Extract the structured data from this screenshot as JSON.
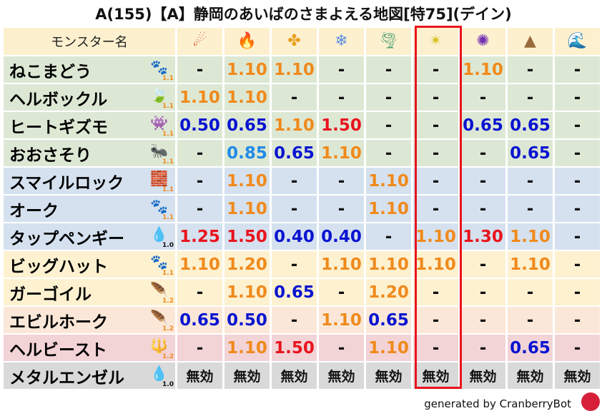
{
  "title": "A(155)【A】静岡のあいばのさまよえる地図[特75](デイン)",
  "header": {
    "name_label": "モンスター名",
    "elements": [
      {
        "icon": "fire-ball-icon",
        "glyph": "☄",
        "color": "#d2401c"
      },
      {
        "icon": "flame-icon",
        "glyph": "🔥",
        "color": "#e8501c"
      },
      {
        "icon": "explosion-icon",
        "glyph": "✤",
        "color": "#e8a020"
      },
      {
        "icon": "ice-icon",
        "glyph": "❄",
        "color": "#5b8fe0"
      },
      {
        "icon": "wind-icon",
        "glyph": "🌪",
        "color": "#4aa070"
      },
      {
        "icon": "light-icon",
        "glyph": "✴",
        "color": "#d8c020"
      },
      {
        "icon": "dark-icon",
        "glyph": "✺",
        "color": "#7030b0"
      },
      {
        "icon": "earth-icon",
        "glyph": "▲",
        "color": "#9a6a3a"
      },
      {
        "icon": "water-icon",
        "glyph": "🌊",
        "color": "#2080d0"
      }
    ]
  },
  "highlight_column": 6,
  "colors": {
    "orange": "#f08a1c",
    "red": "#e8141e",
    "blue": "#0a14d0",
    "lightblue": "#1f8ae8",
    "green_row": "#dde8d4",
    "blue_row": "#d5e1ef",
    "yellow_row": "#fdf1d0",
    "peach_row": "#fbe7d8",
    "pink_row": "#f2d3d6",
    "gray_row": "#d9d9d9"
  },
  "rows": [
    {
      "name": "ねこまどう",
      "icon": "paw-icon",
      "glyph": "🐾",
      "level": "1.1",
      "row": "green_row",
      "values": [
        "-",
        "1.10",
        "1.10",
        "-",
        "-",
        "-",
        "1.10",
        "-",
        "-"
      ]
    },
    {
      "name": "ヘルボックル",
      "icon": "leaf-icon",
      "glyph": "🍃",
      "level": "1.1",
      "row": "green_row",
      "values": [
        "1.10",
        "1.10",
        "-",
        "-",
        "-",
        "-",
        "-",
        "-",
        "-"
      ]
    },
    {
      "name": "ヒートギズモ",
      "icon": "gas-monster-icon",
      "glyph": "👾",
      "level": "1.1",
      "row": "green_row",
      "values": [
        "0.50",
        "0.65",
        "1.10",
        "1.50",
        "-",
        "-",
        "0.65",
        "0.65",
        "-"
      ]
    },
    {
      "name": "おおさそり",
      "icon": "bug-icon",
      "glyph": "🐜",
      "level": "1.1",
      "row": "green_row",
      "values": [
        "-",
        "0.85",
        "0.65",
        "1.10",
        "-",
        "-",
        "-",
        "0.65",
        "-"
      ]
    },
    {
      "name": "スマイルロック",
      "icon": "brick-icon",
      "glyph": "🧱",
      "level": "1.1",
      "row": "blue_row",
      "values": [
        "-",
        "1.10",
        "-",
        "-",
        "1.10",
        "-",
        "-",
        "-",
        "-"
      ]
    },
    {
      "name": "オーク",
      "icon": "paw-icon",
      "glyph": "🐾",
      "level": "1.1",
      "row": "blue_row",
      "values": [
        "-",
        "1.10",
        "-",
        "-",
        "1.10",
        "-",
        "-",
        "-",
        "-"
      ]
    },
    {
      "name": "タップペンギー",
      "icon": "water-drop-icon",
      "glyph": "💧",
      "level": "1.0",
      "row": "blue_row",
      "values": [
        "1.25",
        "1.50",
        "0.40",
        "0.40",
        "-",
        "1.10",
        "1.30",
        "1.10",
        "-"
      ]
    },
    {
      "name": "ビッグハット",
      "icon": "paw-icon",
      "glyph": "🐾",
      "level": "1.1",
      "row": "yellow_row",
      "values": [
        "1.10",
        "1.20",
        "-",
        "1.10",
        "1.10",
        "1.10",
        "-",
        "1.10",
        "-"
      ]
    },
    {
      "name": "ガーゴイル",
      "icon": "wing-icon",
      "glyph": "🪶",
      "level": "1.2",
      "row": "yellow_row",
      "values": [
        "-",
        "1.10",
        "0.65",
        "-",
        "1.20",
        "-",
        "-",
        "-",
        "-"
      ]
    },
    {
      "name": "エビルホーク",
      "icon": "wing-icon",
      "glyph": "🪶",
      "level": "1.2",
      "row": "peach_row",
      "values": [
        "0.65",
        "0.50",
        "-",
        "1.10",
        "0.65",
        "-",
        "-",
        "-",
        "-"
      ]
    },
    {
      "name": "ヘルビースト",
      "icon": "trident-icon",
      "glyph": "🔱",
      "level": "1.2",
      "row": "pink_row",
      "values": [
        "-",
        "1.10",
        "1.50",
        "-",
        "1.10",
        "-",
        "-",
        "0.65",
        "-"
      ]
    },
    {
      "name": "メタルエンゼル",
      "icon": "metal-slime-icon",
      "glyph": "💧",
      "level": "1.0",
      "row": "gray_row",
      "values": [
        "無効",
        "無効",
        "無効",
        "無効",
        "無効",
        "無効",
        "無効",
        "無効",
        "無効"
      ]
    }
  ],
  "footer": "generated by CranberryBot"
}
